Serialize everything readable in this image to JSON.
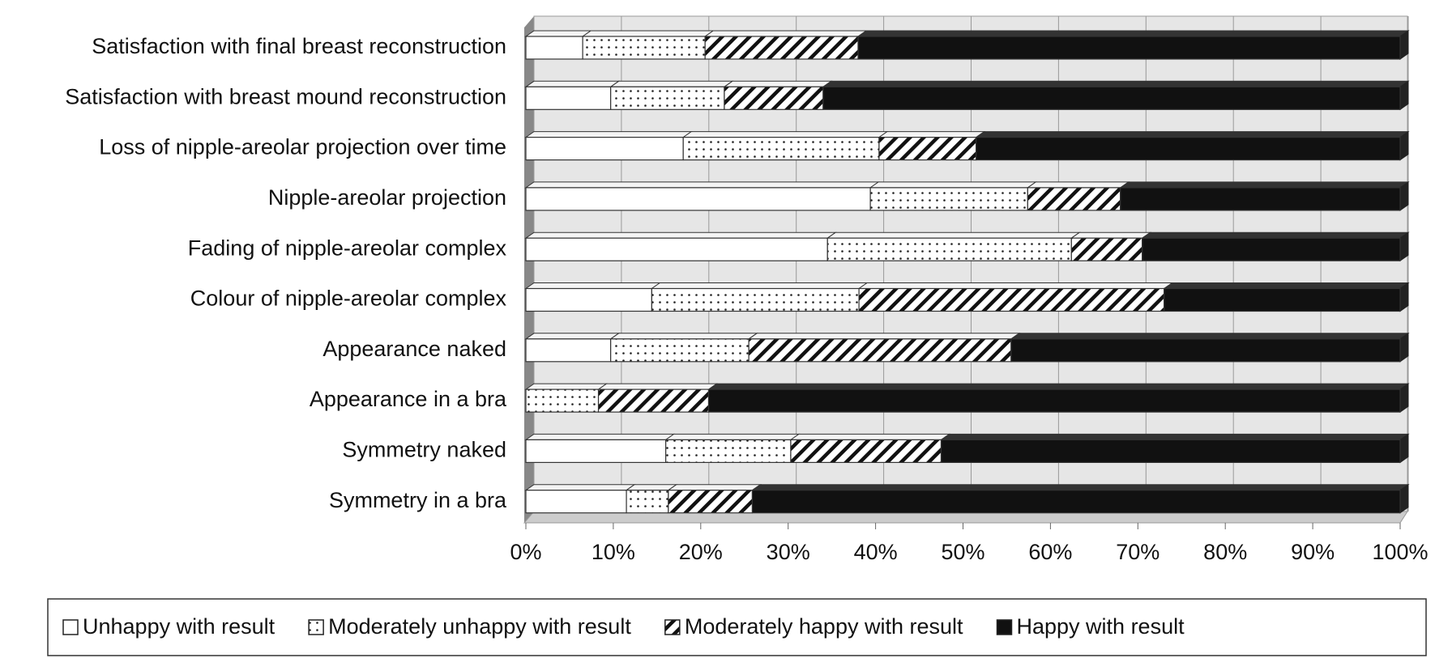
{
  "chart_data": {
    "type": "stacked-barh",
    "categories": [
      "Satisfaction with final breast reconstruction",
      "Satisfaction with breast mound reconstruction",
      "Loss of nipple-areolar projection over time",
      "Nipple-areolar projection",
      "Fading of nipple-areolar complex",
      "Colour of nipple-areolar complex",
      "Appearance naked",
      "Appearance in a bra",
      "Symmetry naked",
      "Symmetry in a bra"
    ],
    "series": [
      {
        "name": "Unhappy with result",
        "color": "#ffffff",
        "pattern": "none",
        "values": [
          6.5,
          9.7,
          18,
          39.4,
          34.5,
          14.4,
          9.7,
          0,
          16,
          11.5
        ]
      },
      {
        "name": "Moderately unhappy with result",
        "color": "#ffffff",
        "pattern": "dots",
        "values": [
          14,
          13,
          22.4,
          18,
          27.9,
          23.7,
          15.8,
          8.3,
          14.3,
          4.8
        ]
      },
      {
        "name": "Moderately happy with result",
        "color": "#ffffff",
        "pattern": "hatch",
        "values": [
          17.5,
          11.3,
          11.1,
          10.6,
          8.1,
          34.9,
          30,
          12.6,
          17.2,
          9.6
        ]
      },
      {
        "name": "Happy with result",
        "color": "#111111",
        "pattern": "none",
        "values": [
          62,
          66,
          48.5,
          32,
          29.5,
          27,
          44.5,
          79.1,
          52.5,
          74.1
        ]
      }
    ],
    "xlim": [
      0,
      100
    ],
    "xticks": [
      {
        "value": 0,
        "label": "0%"
      },
      {
        "value": 10,
        "label": "10%"
      },
      {
        "value": 20,
        "label": "20%"
      },
      {
        "value": 30,
        "label": "30%"
      },
      {
        "value": 40,
        "label": "40%"
      },
      {
        "value": 50,
        "label": "50%"
      },
      {
        "value": 60,
        "label": "60%"
      },
      {
        "value": 70,
        "label": "70%"
      },
      {
        "value": 80,
        "label": "80%"
      },
      {
        "value": 90,
        "label": "90%"
      },
      {
        "value": 100,
        "label": "100%"
      }
    ],
    "grid": true,
    "legend": "bottom"
  }
}
